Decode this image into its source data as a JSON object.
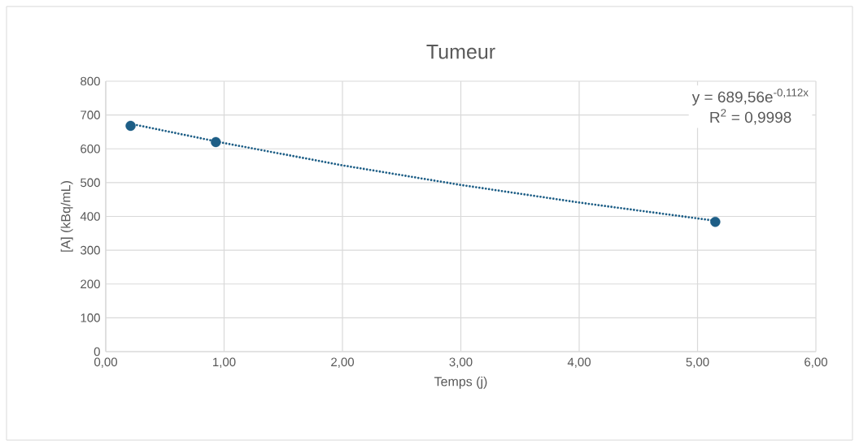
{
  "chart_data": {
    "type": "scatter",
    "title": "Tumeur",
    "xlabel": "Temps (j)",
    "ylabel": "[A] (kBq/mL)",
    "series": [
      {
        "color": "#1d5e86",
        "marker": "circle",
        "x": [
          0.21,
          0.93,
          5.15
        ],
        "values": [
          668,
          620,
          384
        ]
      },
      {
        "type": "line",
        "color": "#1d5e86",
        "marker": "none",
        "line_style": "dotted",
        "x": [
          0.21,
          1,
          2,
          3,
          4,
          5,
          5.15
        ],
        "values": [
          674,
          617,
          551,
          493,
          441,
          394,
          387
        ]
      }
    ],
    "xlim": [
      0,
      6
    ],
    "ylim": [
      0,
      800
    ],
    "xticks": [
      {
        "value": 0,
        "label": "0,00"
      },
      {
        "value": 1,
        "label": "1,00"
      },
      {
        "value": 2,
        "label": "2,00"
      },
      {
        "value": 3,
        "label": "3,00"
      },
      {
        "value": 4,
        "label": "4,00"
      },
      {
        "value": 5,
        "label": "5,00"
      },
      {
        "value": 6,
        "label": "6,00"
      }
    ],
    "yticks": [
      0,
      100,
      200,
      300,
      400,
      500,
      600,
      700,
      800
    ],
    "grid": true,
    "annotations": [
      "y = 689,56e$^{-0,112x}$",
      "R$^{2}$ = 0,9998"
    ]
  }
}
